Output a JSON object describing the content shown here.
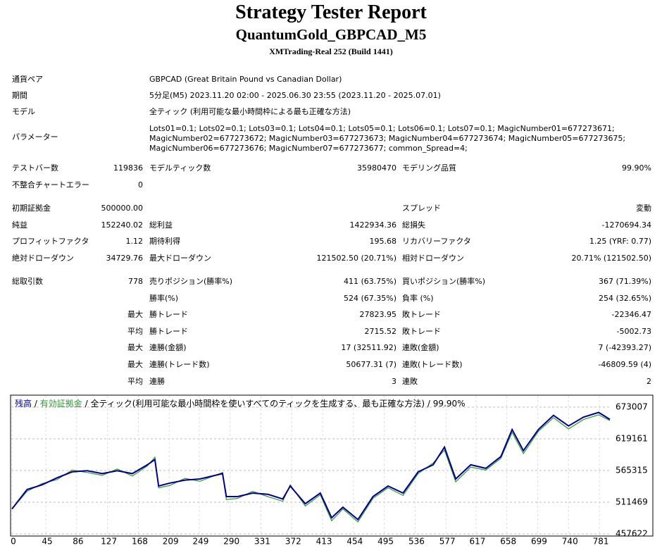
{
  "header": {
    "title": "Strategy Tester Report",
    "subtitle": "QuantumGold_GBPCAD_M5",
    "server": "XMTrading-Real 252 (Build 1441)"
  },
  "info": [
    [
      "通貨ペア",
      "GBPCAD (Great Britain Pound vs Canadian Dollar)"
    ],
    [
      "期間",
      "5分足(M5) 2023.11.20 02:00 - 2025.06.30 23:55 (2023.11.20 - 2025.07.01)"
    ],
    [
      "モデル",
      "全ティック (利用可能な最小時間枠による最も正確な方法)"
    ],
    [
      "パラメーター",
      "Lots01=0.1; Lots02=0.1; Lots03=0.1; Lots04=0.1; Lots05=0.1; Lots06=0.1; Lots07=0.1; MagicNumber01=677273671; MagicNumber02=677273672; MagicNumber03=677273673; MagicNumber04=677273674; MagicNumber05=677273675; MagicNumber06=677273676; MagicNumber07=677273677; common_Spread=4;"
    ]
  ],
  "stats": [
    [
      [
        "テストバー数",
        "119836",
        "モデルティック数",
        "35980470",
        "モデリング品質",
        "99.90%"
      ],
      [
        "不整合チャートエラー",
        "0",
        null,
        null,
        null,
        null
      ]
    ],
    [
      [
        "初期証拠金",
        "500000.00",
        null,
        null,
        "スプレッド",
        "変動"
      ],
      [
        "純益",
        "152240.02",
        "総利益",
        "1422934.36",
        "総損失",
        "-1270694.34"
      ],
      [
        "プロフィットファクタ",
        "1.12",
        "期待利得",
        "195.68",
        "リカバリーファクタ",
        "1.25 (YRF: 0.77)"
      ],
      [
        "絶対ドローダウン",
        "34729.76",
        "最大ドローダウン",
        "121502.50 (20.71%)",
        "相対ドローダウン",
        "20.71% (121502.50)"
      ]
    ],
    [
      [
        "総取引数",
        "778",
        "売りポジション(勝率%)",
        "411 (63.75%)",
        "買いポジション(勝率%)",
        "367 (71.39%)"
      ],
      [
        null,
        null,
        "勝率(%)",
        "524 (67.35%)",
        "負率 (%)",
        "254 (32.65%)"
      ],
      [
        null,
        "最大",
        "勝トレード",
        "27823.95",
        "敗トレード",
        "-22346.47"
      ],
      [
        null,
        "平均",
        "勝トレード",
        "2715.52",
        "敗トレード",
        "-5002.73"
      ],
      [
        null,
        "最大",
        "連勝(金額)",
        "17 (32511.92)",
        "連敗(金額)",
        "7 (-42393.27)"
      ],
      [
        null,
        "最大",
        "連勝(トレード数)",
        "50677.31 (7)",
        "連敗(トレード数)",
        "-46809.59 (4)"
      ],
      [
        null,
        "平均",
        "連勝",
        "3",
        "連敗",
        "2"
      ]
    ]
  ],
  "chart_data": {
    "type": "line",
    "legend_separator": "/",
    "model": "全ティック(利用可能な最小時間枠を使いすべてのティックを生成する、最も正確な方法)",
    "quality": "99.90%",
    "x": [
      0,
      20,
      40,
      60,
      80,
      100,
      120,
      140,
      160,
      180,
      190,
      195,
      210,
      230,
      250,
      280,
      285,
      300,
      320,
      340,
      360,
      370,
      390,
      410,
      425,
      440,
      460,
      480,
      500,
      520,
      540,
      560,
      575,
      590,
      610,
      630,
      650,
      665,
      680,
      700,
      720,
      740,
      760,
      780,
      795
    ],
    "series": [
      {
        "name": "残高",
        "color": "#00008b",
        "values": [
          500000,
          533000,
          541000,
          553000,
          563000,
          565000,
          560000,
          565000,
          560000,
          575000,
          584000,
          539000,
          544000,
          549000,
          551000,
          560000,
          521000,
          521000,
          527000,
          525000,
          517000,
          539000,
          509000,
          527000,
          485000,
          503000,
          482000,
          521000,
          539000,
          527000,
          563000,
          575000,
          605000,
          551000,
          575000,
          569000,
          589000,
          635000,
          599000,
          635000,
          659000,
          641000,
          656000,
          664000,
          652240
        ]
      },
      {
        "name": "有効証拠金",
        "color": "#2e9a2e",
        "values": [
          500000,
          530000,
          543000,
          550000,
          566000,
          562000,
          557000,
          568000,
          556000,
          573000,
          588000,
          536000,
          540000,
          552000,
          547000,
          562000,
          516000,
          518000,
          530000,
          521000,
          513000,
          541000,
          505000,
          524000,
          480000,
          500000,
          478000,
          518000,
          536000,
          523000,
          560000,
          578000,
          600000,
          546000,
          571000,
          566000,
          586000,
          630000,
          594000,
          632000,
          655000,
          636000,
          652000,
          660000,
          650000
        ]
      }
    ],
    "xlim": [
      0,
      795
    ],
    "xticks": [
      0,
      45,
      86,
      127,
      168,
      209,
      249,
      290,
      331,
      372,
      413,
      454,
      495,
      536,
      577,
      617,
      658,
      699,
      740,
      781
    ],
    "ylim": [
      457622,
      673007
    ],
    "yticks": [
      457622,
      511469,
      565315,
      619161,
      673007
    ],
    "grid": true
  }
}
